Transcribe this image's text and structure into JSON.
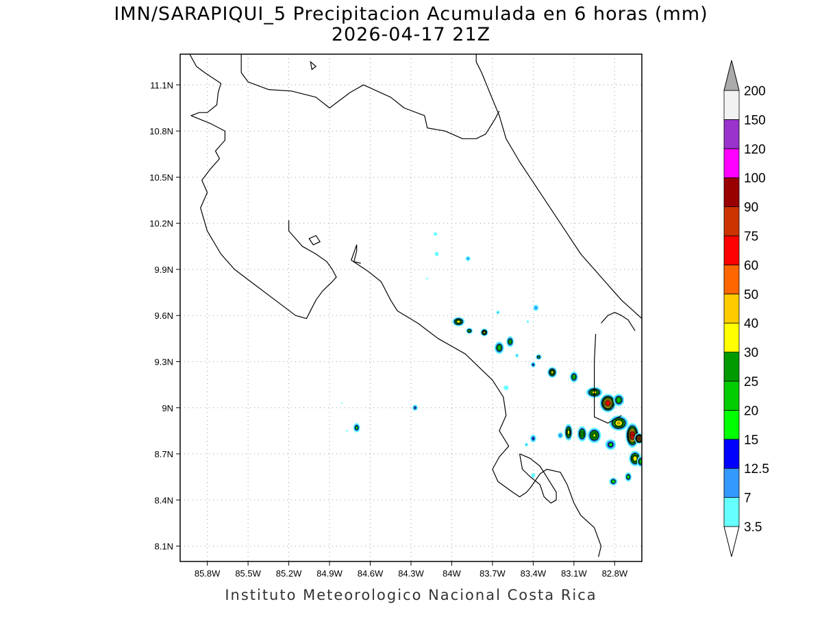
{
  "title": {
    "line1": "IMN/SARAPIQUI_5 Precipitacion Acumulada en 6 horas (mm)",
    "line2": "2026-04-17 21Z"
  },
  "footer": "Instituto Meteorologico Nacional Costa Rica",
  "map": {
    "lon_range": [
      -86.0,
      -82.6
    ],
    "lat_range": [
      8.0,
      11.3
    ],
    "lon_ticks": [
      {
        "value": -85.8,
        "label": "85.8W"
      },
      {
        "value": -85.5,
        "label": "85.5W"
      },
      {
        "value": -85.2,
        "label": "85.2W"
      },
      {
        "value": -84.9,
        "label": "84.9W"
      },
      {
        "value": -84.6,
        "label": "84.6W"
      },
      {
        "value": -84.3,
        "label": "84.3W"
      },
      {
        "value": -84.0,
        "label": "84W"
      },
      {
        "value": -83.7,
        "label": "83.7W"
      },
      {
        "value": -83.4,
        "label": "83.4W"
      },
      {
        "value": -83.1,
        "label": "83.1W"
      },
      {
        "value": -82.8,
        "label": "82.8W"
      }
    ],
    "lat_ticks": [
      {
        "value": 11.1,
        "label": "11.1N"
      },
      {
        "value": 10.8,
        "label": "10.8N"
      },
      {
        "value": 10.5,
        "label": "10.5N"
      },
      {
        "value": 10.2,
        "label": "10.2N"
      },
      {
        "value": 9.9,
        "label": "9.9N"
      },
      {
        "value": 9.6,
        "label": "9.6N"
      },
      {
        "value": 9.3,
        "label": "9.3N"
      },
      {
        "value": 9.0,
        "label": "9N"
      },
      {
        "value": 8.7,
        "label": "8.7N"
      },
      {
        "value": 8.4,
        "label": "8.4N"
      },
      {
        "value": 8.1,
        "label": "8.1N"
      }
    ],
    "grid": true,
    "colorbar": {
      "labels": [
        "3.5",
        "7",
        "12.5",
        "15",
        "20",
        "25",
        "30",
        "40",
        "50",
        "60",
        "75",
        "90",
        "100",
        "120",
        "150",
        "200"
      ],
      "colors": [
        "#66ffff",
        "#3399ff",
        "#0000ff",
        "#00ff00",
        "#00cc00",
        "#009900",
        "#ffff00",
        "#ffcc00",
        "#ff6600",
        "#ff0000",
        "#cc3300",
        "#990000",
        "#ff00ff",
        "#9933cc",
        "#f2f2f2"
      ],
      "top_arrow_color": "#aaaaaa",
      "bottom_arrow_color": "#ffffff"
    },
    "precip_cells": [
      {
        "lon": -84.12,
        "lat": 10.13,
        "rx": 0.012,
        "ry": 0.012,
        "max": 5
      },
      {
        "lon": -84.11,
        "lat": 10.0,
        "rx": 0.014,
        "ry": 0.014,
        "max": 6
      },
      {
        "lon": -83.88,
        "lat": 9.97,
        "rx": 0.018,
        "ry": 0.016,
        "max": 9
      },
      {
        "lon": -84.18,
        "lat": 9.84,
        "rx": 0.006,
        "ry": 0.006,
        "max": 4
      },
      {
        "lon": -83.95,
        "lat": 9.56,
        "rx": 0.045,
        "ry": 0.03,
        "max": 36
      },
      {
        "lon": -83.87,
        "lat": 9.5,
        "rx": 0.025,
        "ry": 0.02,
        "max": 22
      },
      {
        "lon": -83.76,
        "lat": 9.49,
        "rx": 0.028,
        "ry": 0.025,
        "max": 34
      },
      {
        "lon": -83.65,
        "lat": 9.39,
        "rx": 0.035,
        "ry": 0.04,
        "max": 24
      },
      {
        "lon": -83.57,
        "lat": 9.43,
        "rx": 0.028,
        "ry": 0.035,
        "max": 22
      },
      {
        "lon": -83.38,
        "lat": 9.65,
        "rx": 0.02,
        "ry": 0.02,
        "max": 10
      },
      {
        "lon": -83.66,
        "lat": 9.62,
        "rx": 0.012,
        "ry": 0.012,
        "max": 8
      },
      {
        "lon": -83.36,
        "lat": 9.33,
        "rx": 0.022,
        "ry": 0.018,
        "max": 18
      },
      {
        "lon": -83.4,
        "lat": 9.28,
        "rx": 0.018,
        "ry": 0.018,
        "max": 14
      },
      {
        "lon": -83.26,
        "lat": 9.23,
        "rx": 0.035,
        "ry": 0.035,
        "max": 34
      },
      {
        "lon": -83.52,
        "lat": 9.34,
        "rx": 0.012,
        "ry": 0.012,
        "max": 8
      },
      {
        "lon": -83.1,
        "lat": 9.2,
        "rx": 0.03,
        "ry": 0.035,
        "max": 24
      },
      {
        "lon": -82.95,
        "lat": 9.1,
        "rx": 0.06,
        "ry": 0.035,
        "max": 35
      },
      {
        "lon": -82.85,
        "lat": 9.03,
        "rx": 0.06,
        "ry": 0.06,
        "max": 72
      },
      {
        "lon": -82.77,
        "lat": 9.05,
        "rx": 0.04,
        "ry": 0.04,
        "max": 25
      },
      {
        "lon": -82.77,
        "lat": 8.9,
        "rx": 0.07,
        "ry": 0.05,
        "max": 42
      },
      {
        "lon": -82.67,
        "lat": 8.82,
        "rx": 0.05,
        "ry": 0.08,
        "max": 78
      },
      {
        "lon": -82.62,
        "lat": 8.8,
        "rx": 0.035,
        "ry": 0.035,
        "max": 62
      },
      {
        "lon": -82.65,
        "lat": 8.67,
        "rx": 0.045,
        "ry": 0.05,
        "max": 38
      },
      {
        "lon": -82.61,
        "lat": 8.65,
        "rx": 0.025,
        "ry": 0.035,
        "max": 24
      },
      {
        "lon": -82.7,
        "lat": 8.55,
        "rx": 0.025,
        "ry": 0.03,
        "max": 20
      },
      {
        "lon": -82.83,
        "lat": 8.76,
        "rx": 0.04,
        "ry": 0.035,
        "max": 18
      },
      {
        "lon": -82.95,
        "lat": 8.82,
        "rx": 0.05,
        "ry": 0.05,
        "max": 32
      },
      {
        "lon": -83.04,
        "lat": 8.83,
        "rx": 0.035,
        "ry": 0.05,
        "max": 30
      },
      {
        "lon": -83.14,
        "lat": 8.84,
        "rx": 0.03,
        "ry": 0.055,
        "max": 34
      },
      {
        "lon": -83.2,
        "lat": 8.82,
        "rx": 0.02,
        "ry": 0.02,
        "max": 12
      },
      {
        "lon": -83.4,
        "lat": 8.8,
        "rx": 0.022,
        "ry": 0.025,
        "max": 14
      },
      {
        "lon": -83.45,
        "lat": 8.76,
        "rx": 0.012,
        "ry": 0.012,
        "max": 8
      },
      {
        "lon": -82.81,
        "lat": 8.52,
        "rx": 0.03,
        "ry": 0.025,
        "max": 20
      },
      {
        "lon": -83.4,
        "lat": 8.56,
        "rx": 0.015,
        "ry": 0.015,
        "max": 5
      },
      {
        "lon": -83.6,
        "lat": 9.13,
        "rx": 0.018,
        "ry": 0.015,
        "max": 5
      },
      {
        "lon": -84.27,
        "lat": 9.0,
        "rx": 0.02,
        "ry": 0.02,
        "max": 14
      },
      {
        "lon": -84.7,
        "lat": 8.87,
        "rx": 0.025,
        "ry": 0.03,
        "max": 18
      },
      {
        "lon": -84.77,
        "lat": 8.85,
        "rx": 0.006,
        "ry": 0.006,
        "max": 4
      },
      {
        "lon": -84.81,
        "lat": 9.03,
        "rx": 0.005,
        "ry": 0.005,
        "max": 4
      },
      {
        "lon": -83.44,
        "lat": 9.56,
        "rx": 0.008,
        "ry": 0.008,
        "max": 5
      }
    ],
    "coastlines": [
      [
        [
          -85.93,
          11.3
        ],
        [
          -85.88,
          11.22
        ],
        [
          -85.82,
          11.18
        ],
        [
          -85.7,
          11.11
        ],
        [
          -85.72,
          11.05
        ],
        [
          -85.73,
          10.97
        ],
        [
          -85.8,
          10.92
        ],
        [
          -85.86,
          10.92
        ],
        [
          -85.92,
          10.9
        ],
        [
          -85.78,
          10.85
        ],
        [
          -85.67,
          10.8
        ],
        [
          -85.67,
          10.74
        ],
        [
          -85.71,
          10.7
        ],
        [
          -85.74,
          10.67
        ],
        [
          -85.71,
          10.62
        ],
        [
          -85.78,
          10.55
        ],
        [
          -85.84,
          10.48
        ],
        [
          -85.8,
          10.4
        ],
        [
          -85.85,
          10.3
        ],
        [
          -85.8,
          10.15
        ],
        [
          -85.7,
          10.0
        ],
        [
          -85.6,
          9.9
        ],
        [
          -85.45,
          9.8
        ],
        [
          -85.3,
          9.7
        ],
        [
          -85.15,
          9.6
        ],
        [
          -85.07,
          9.58
        ],
        [
          -85.0,
          9.7
        ],
        [
          -84.95,
          9.76
        ],
        [
          -84.88,
          9.82
        ],
        [
          -84.85,
          9.85
        ],
        [
          -84.88,
          9.9
        ],
        [
          -84.92,
          9.95
        ],
        [
          -85.0,
          10.0
        ],
        [
          -85.1,
          10.05
        ],
        [
          -85.15,
          10.1
        ],
        [
          -85.2,
          10.15
        ],
        [
          -85.2,
          10.22
        ]
      ],
      [
        [
          -84.67,
          9.94
        ],
        [
          -84.72,
          9.95
        ],
        [
          -84.7,
          10.02
        ],
        [
          -84.7,
          10.06
        ],
        [
          -84.74,
          9.96
        ],
        [
          -84.62,
          9.89
        ],
        [
          -84.52,
          9.82
        ],
        [
          -84.45,
          9.7
        ],
        [
          -84.4,
          9.63
        ],
        [
          -84.25,
          9.55
        ],
        [
          -84.1,
          9.45
        ],
        [
          -83.9,
          9.35
        ],
        [
          -83.7,
          9.18
        ],
        [
          -83.62,
          9.07
        ],
        [
          -83.6,
          8.95
        ],
        [
          -83.65,
          8.85
        ],
        [
          -83.58,
          8.75
        ],
        [
          -83.65,
          8.68
        ],
        [
          -83.7,
          8.6
        ],
        [
          -83.66,
          8.52
        ],
        [
          -83.55,
          8.45
        ],
        [
          -83.5,
          8.42
        ],
        [
          -83.45,
          8.45
        ],
        [
          -83.42,
          8.48
        ],
        [
          -83.35,
          8.57
        ],
        [
          -83.3,
          8.6
        ],
        [
          -83.2,
          8.58
        ],
        [
          -83.15,
          8.5
        ],
        [
          -83.1,
          8.38
        ],
        [
          -83.05,
          8.3
        ],
        [
          -82.95,
          8.22
        ],
        [
          -82.9,
          8.1
        ],
        [
          -82.92,
          8.03
        ]
      ],
      [
        [
          -83.5,
          8.7
        ],
        [
          -83.42,
          8.67
        ],
        [
          -83.35,
          8.62
        ],
        [
          -83.3,
          8.55
        ],
        [
          -83.23,
          8.45
        ],
        [
          -83.23,
          8.4
        ],
        [
          -83.27,
          8.38
        ],
        [
          -83.32,
          8.42
        ],
        [
          -83.35,
          8.5
        ],
        [
          -83.42,
          8.55
        ],
        [
          -83.48,
          8.6
        ],
        [
          -83.5,
          8.7
        ]
      ],
      [
        [
          -85.55,
          11.3
        ],
        [
          -85.55,
          11.18
        ],
        [
          -85.5,
          11.12
        ],
        [
          -85.35,
          11.07
        ],
        [
          -85.18,
          11.06
        ],
        [
          -85.0,
          11.02
        ],
        [
          -84.9,
          10.95
        ],
        [
          -84.75,
          11.05
        ],
        [
          -84.65,
          11.1
        ],
        [
          -84.45,
          11.02
        ],
        [
          -84.35,
          10.95
        ],
        [
          -84.2,
          10.9
        ],
        [
          -84.18,
          10.82
        ],
        [
          -84.05,
          10.8
        ],
        [
          -83.92,
          10.75
        ],
        [
          -83.82,
          10.75
        ],
        [
          -83.75,
          10.78
        ],
        [
          -83.68,
          10.88
        ],
        [
          -83.65,
          10.93
        ]
      ],
      [
        [
          -83.82,
          11.3
        ],
        [
          -83.82,
          11.25
        ],
        [
          -83.78,
          11.18
        ],
        [
          -83.72,
          11.05
        ],
        [
          -83.65,
          10.9
        ],
        [
          -83.6,
          10.75
        ],
        [
          -83.5,
          10.6
        ],
        [
          -83.35,
          10.4
        ],
        [
          -83.2,
          10.2
        ],
        [
          -83.05,
          10.0
        ],
        [
          -82.85,
          9.8
        ],
        [
          -82.75,
          9.7
        ],
        [
          -82.65,
          9.62
        ],
        [
          -82.6,
          9.58
        ]
      ],
      [
        [
          -82.9,
          9.55
        ],
        [
          -82.85,
          9.6
        ],
        [
          -82.8,
          9.62
        ],
        [
          -82.75,
          9.6
        ],
        [
          -82.7,
          9.57
        ],
        [
          -82.65,
          9.5
        ]
      ],
      [
        [
          -82.94,
          9.48
        ],
        [
          -82.95,
          9.3
        ],
        [
          -82.95,
          9.07
        ],
        [
          -82.95,
          8.94
        ],
        [
          -82.85,
          8.9
        ],
        [
          -82.75,
          8.95
        ]
      ]
    ],
    "lakes": [
      [
        [
          -85.04,
          11.25
        ],
        [
          -85.0,
          11.22
        ],
        [
          -85.03,
          11.2
        ],
        [
          -85.04,
          11.25
        ]
      ],
      [
        [
          -85.05,
          10.1
        ],
        [
          -85.0,
          10.12
        ],
        [
          -84.97,
          10.08
        ],
        [
          -85.02,
          10.06
        ],
        [
          -85.05,
          10.1
        ]
      ]
    ]
  }
}
